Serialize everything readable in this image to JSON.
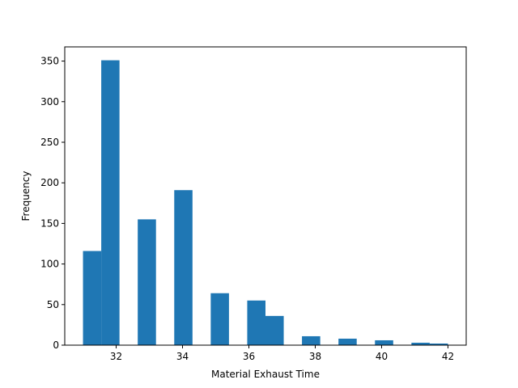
{
  "chart_data": {
    "type": "bar",
    "title": "",
    "xlabel": "Material Exhaust Time",
    "ylabel": "Frequency",
    "xlim": [
      30.45,
      42.55
    ],
    "ylim": [
      0,
      367.5
    ],
    "xticks": [
      32,
      34,
      36,
      38,
      40,
      42
    ],
    "yticks": [
      0,
      50,
      100,
      150,
      200,
      250,
      300,
      350
    ],
    "bin_width": 0.55,
    "bins": [
      {
        "x_start": 31.0,
        "x_end": 31.55,
        "count": 116
      },
      {
        "x_start": 31.55,
        "x_end": 32.1,
        "count": 351
      },
      {
        "x_start": 32.65,
        "x_end": 33.2,
        "count": 155
      },
      {
        "x_start": 33.75,
        "x_end": 34.3,
        "count": 191
      },
      {
        "x_start": 34.85,
        "x_end": 35.4,
        "count": 64
      },
      {
        "x_start": 35.95,
        "x_end": 36.5,
        "count": 55
      },
      {
        "x_start": 36.5,
        "x_end": 37.05,
        "count": 36
      },
      {
        "x_start": 37.6,
        "x_end": 38.15,
        "count": 11
      },
      {
        "x_start": 38.7,
        "x_end": 39.25,
        "count": 8
      },
      {
        "x_start": 39.8,
        "x_end": 40.35,
        "count": 6
      },
      {
        "x_start": 40.9,
        "x_end": 41.45,
        "count": 3
      },
      {
        "x_start": 41.45,
        "x_end": 42.0,
        "count": 2
      }
    ],
    "grid": false,
    "colors": {
      "bar": "#1f77b4",
      "axis": "#000000",
      "background": "#ffffff"
    }
  }
}
